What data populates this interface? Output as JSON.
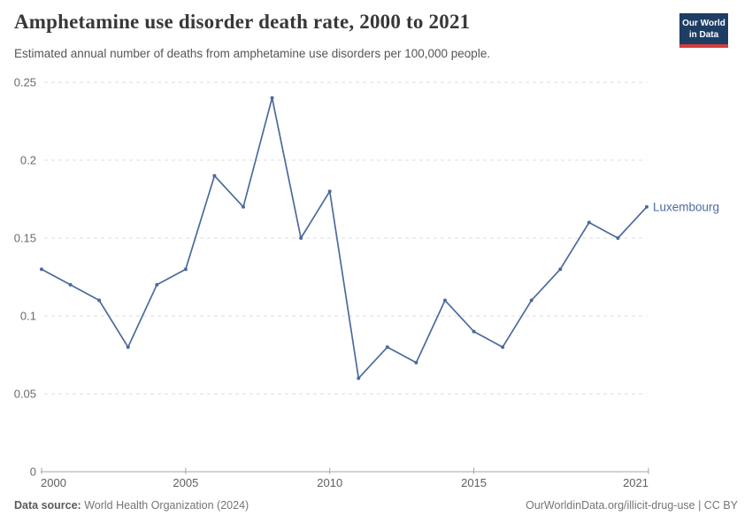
{
  "header": {
    "title": "Amphetamine use disorder death rate, 2000 to 2021",
    "subtitle": "Estimated annual number of deaths from amphetamine use disorders per 100,000 people.",
    "logo": {
      "line1": "Our World",
      "line2": "in Data",
      "bg_color": "#1d3d63",
      "accent_color": "#d73c3c"
    }
  },
  "chart_data": {
    "type": "line",
    "title": "Amphetamine use disorder death rate, 2000 to 2021",
    "x": [
      2000,
      2001,
      2002,
      2003,
      2004,
      2005,
      2006,
      2007,
      2008,
      2009,
      2010,
      2011,
      2012,
      2013,
      2014,
      2015,
      2016,
      2017,
      2018,
      2019,
      2020,
      2021
    ],
    "series": [
      {
        "name": "Luxembourg",
        "color": "#4c6a9c",
        "values": [
          0.13,
          0.12,
          0.11,
          0.08,
          0.12,
          0.13,
          0.19,
          0.17,
          0.24,
          0.15,
          0.18,
          0.06,
          0.08,
          0.07,
          0.11,
          0.09,
          0.08,
          0.11,
          0.13,
          0.16,
          0.15,
          0.17
        ]
      }
    ],
    "xlabel": "",
    "ylabel": "",
    "ylim": [
      0,
      0.25
    ],
    "yticks": [
      0,
      0.05,
      0.1,
      0.15,
      0.2,
      0.25
    ],
    "xticks": [
      2000,
      2005,
      2010,
      2015,
      2021
    ],
    "grid": "horizontal-dashed",
    "gridline_color": "#dcdcdc",
    "axis_color": "#a5a5a5",
    "tick_label_color": "#6b6b6b",
    "legend_position": "end-of-line",
    "end_label": "Luxembourg"
  },
  "footer": {
    "source_label": "Data source:",
    "source_value": "World Health Organization (2024)",
    "attribution": "OurWorldinData.org/illicit-drug-use | CC BY"
  }
}
